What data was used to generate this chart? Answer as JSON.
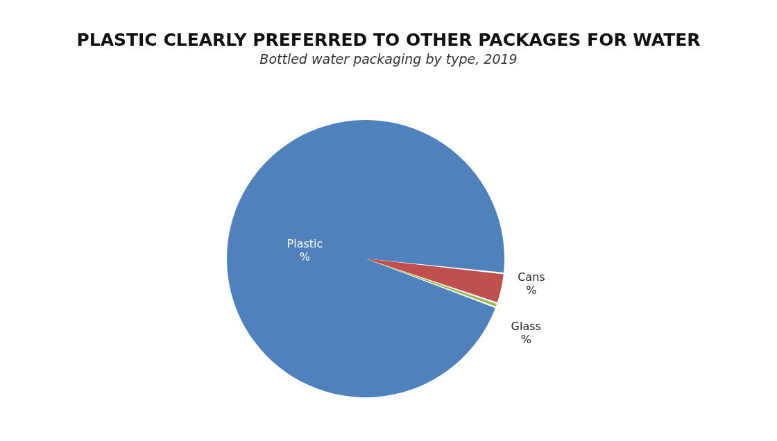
{
  "chart_data": {
    "type": "pie",
    "title": "PLASTIC CLEARLY PREFERRED TO OTHER PACKAGES FOR WATER",
    "subtitle": "Bottled water packaging by type, 2019",
    "categories": [
      "Plastic",
      "Cans",
      "Glass"
    ],
    "values": [
      96,
      3.5,
      0.5
    ],
    "colors": [
      "#4f81bd",
      "#c0504d",
      "#9bbb59"
    ],
    "value_labels": [
      "%",
      "%",
      "%"
    ],
    "legend": false
  }
}
